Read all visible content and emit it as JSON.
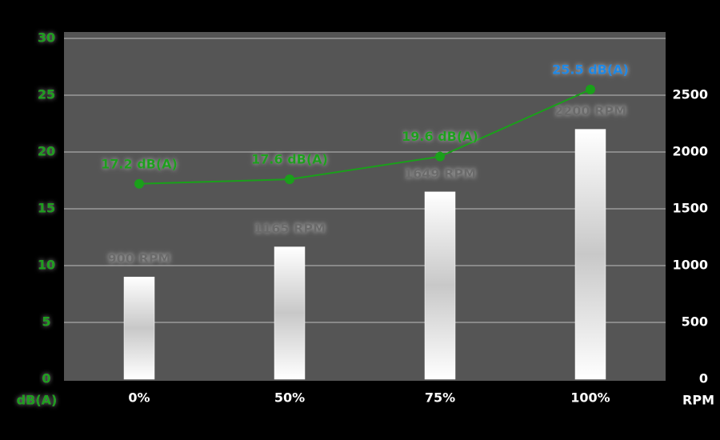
{
  "chart_data": {
    "type": "bar-line",
    "categories": [
      "0%",
      "50%",
      "75%",
      "100%"
    ],
    "series": [
      {
        "type": "bar",
        "axis": "y2",
        "color": "#ffffff",
        "values": [
          900,
          1165,
          1649,
          2200
        ],
        "value_labels": [
          "900 RPM",
          "1165 RPM",
          "1649 RPM",
          "2200 RPM"
        ]
      },
      {
        "type": "line",
        "axis": "y",
        "color": "#1aa01a",
        "values": [
          17.2,
          17.6,
          19.6,
          25.5
        ],
        "value_labels": [
          "17.2 dB(A)",
          "17.6 dB(A)",
          "19.6 dB(A)",
          "25.5 dB(A)"
        ],
        "value_label_colors": [
          "#1aa01a",
          "#1aa01a",
          "#1aa01a",
          "#1e88e5"
        ]
      }
    ],
    "y_label": "dB(A)",
    "y2_label": "RPM",
    "ylim": [
      0,
      30
    ],
    "yticks": [
      0,
      5,
      10,
      15,
      20,
      25,
      30
    ],
    "y2lim": [
      0,
      3000
    ],
    "y2ticks": [
      0,
      500,
      1000,
      1500,
      2000,
      2500
    ],
    "grid": true
  }
}
